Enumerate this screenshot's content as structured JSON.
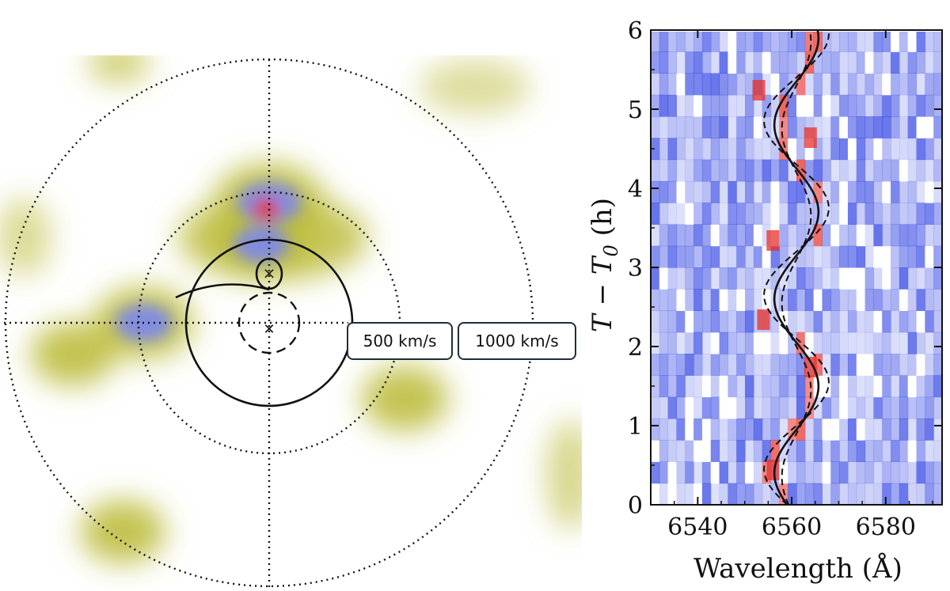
{
  "chart_data": [
    {
      "type": "heatmap",
      "panel": "doppler-tomogram",
      "velocity_labels": [
        "500 km/s",
        "1000 km/s"
      ],
      "blobs": [
        {
          "vx": -750,
          "vy": -120,
          "intensity": 0.35,
          "color": "#b7b73a"
        },
        {
          "vx": -480,
          "vy": 0,
          "intensity": 0.7,
          "color": "#7a86ef"
        },
        {
          "vx": 0,
          "vy": 460,
          "intensity": 1.0,
          "color": "#e0302a"
        },
        {
          "vx": -30,
          "vy": 300,
          "intensity": 0.6,
          "color": "#7a86ef"
        },
        {
          "vx": 520,
          "vy": -290,
          "intensity": 0.4,
          "color": "#b7b73a"
        },
        {
          "vx": -560,
          "vy": -800,
          "intensity": 0.35,
          "color": "#b7b73a"
        }
      ]
    },
    {
      "type": "heatmap",
      "panel": "trailed-spectra",
      "xlabel": "Wavelength (Å)",
      "ylabel": "T − T₀ (h)",
      "xlim": [
        6530,
        6592
      ],
      "ylim": [
        0,
        6
      ],
      "x_ticks": [
        6540,
        6560,
        6580
      ],
      "y_ticks": [
        0,
        1,
        2,
        3,
        4,
        5,
        6
      ],
      "colors": {
        "emission": "#e8302a",
        "absorption": "#1a2fe0",
        "neutral": "#ffffff"
      },
      "sinusoid": {
        "center": 6561,
        "amplitude": 4.7,
        "period_h": 2.2,
        "phase_h": 0.95
      },
      "emission_patches": [
        {
          "wavelength": 6556,
          "time": 0.45
        },
        {
          "wavelength": 6564,
          "time": 1.75
        },
        {
          "wavelength": 6556,
          "time": 3.35
        },
        {
          "wavelength": 6564,
          "time": 4.65
        },
        {
          "wavelength": 6554,
          "time": 2.35
        },
        {
          "wavelength": 6553,
          "time": 5.25
        }
      ]
    }
  ]
}
